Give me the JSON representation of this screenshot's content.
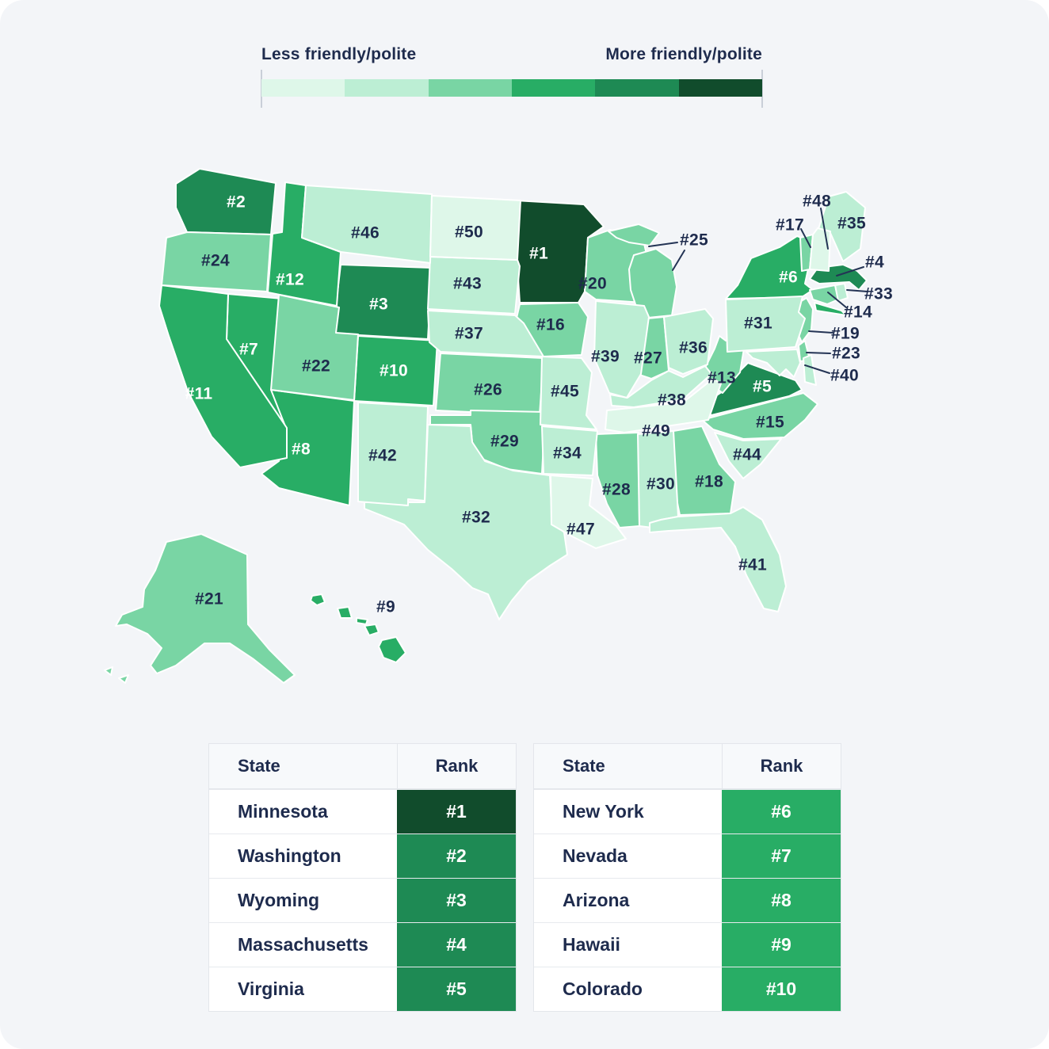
{
  "card": {
    "background": "#f3f5f8"
  },
  "legend": {
    "less_label": "Less friendly/polite",
    "more_label": "More friendly/polite",
    "colors": [
      "#def7e9",
      "#bceed4",
      "#79d5a4",
      "#28ad65",
      "#1e8a54",
      "#114c2c"
    ],
    "text_color": "#1e2b4d"
  },
  "scale_buckets": [
    {
      "min": 1,
      "max": 1,
      "color_index": 5
    },
    {
      "min": 2,
      "max": 5,
      "color_index": 4
    },
    {
      "min": 6,
      "max": 12,
      "color_index": 3
    },
    {
      "min": 13,
      "max": 29,
      "color_index": 2
    },
    {
      "min": 30,
      "max": 46,
      "color_index": 1
    },
    {
      "min": 47,
      "max": 50,
      "color_index": 0
    }
  ],
  "map": {
    "label_color_dark": "#1e2b4d",
    "label_color_light": "#ffffff",
    "callout_line_color": "#243455",
    "states": [
      {
        "abbr": "MN",
        "name": "Minnesota",
        "rank": 1,
        "label": "#1"
      },
      {
        "abbr": "WA",
        "name": "Washington",
        "rank": 2,
        "label": "#2"
      },
      {
        "abbr": "WY",
        "name": "Wyoming",
        "rank": 3,
        "label": "#3"
      },
      {
        "abbr": "MA",
        "name": "Massachusetts",
        "rank": 4,
        "label": "#4"
      },
      {
        "abbr": "VA",
        "name": "Virginia",
        "rank": 5,
        "label": "#5"
      },
      {
        "abbr": "NY",
        "name": "New York",
        "rank": 6,
        "label": "#6"
      },
      {
        "abbr": "NV",
        "name": "Nevada",
        "rank": 7,
        "label": "#7"
      },
      {
        "abbr": "AZ",
        "name": "Arizona",
        "rank": 8,
        "label": "#8"
      },
      {
        "abbr": "HI",
        "name": "Hawaii",
        "rank": 9,
        "label": "#9"
      },
      {
        "abbr": "CO",
        "name": "Colorado",
        "rank": 10,
        "label": "#10"
      },
      {
        "abbr": "CA",
        "name": "California",
        "rank": 11,
        "label": "#11"
      },
      {
        "abbr": "ID",
        "name": "Idaho",
        "rank": 12,
        "label": "#12"
      },
      {
        "abbr": "WV",
        "name": "West Virginia",
        "rank": 13,
        "label": "#13"
      },
      {
        "abbr": "CT",
        "name": "Connecticut",
        "rank": 14,
        "label": "#14"
      },
      {
        "abbr": "NC",
        "name": "North Carolina",
        "rank": 15,
        "label": "#15"
      },
      {
        "abbr": "IA",
        "name": "Iowa",
        "rank": 16,
        "label": "#16"
      },
      {
        "abbr": "VT",
        "name": "Vermont",
        "rank": 17,
        "label": "#17"
      },
      {
        "abbr": "GA",
        "name": "Georgia",
        "rank": 18,
        "label": "#18"
      },
      {
        "abbr": "NJ",
        "name": "New Jersey",
        "rank": 19,
        "label": "#19"
      },
      {
        "abbr": "WI",
        "name": "Wisconsin",
        "rank": 20,
        "label": "#20"
      },
      {
        "abbr": "AK",
        "name": "Alaska",
        "rank": 21,
        "label": "#21"
      },
      {
        "abbr": "UT",
        "name": "Utah",
        "rank": 22,
        "label": "#22"
      },
      {
        "abbr": "DE",
        "name": "Delaware",
        "rank": 23,
        "label": "#23"
      },
      {
        "abbr": "OR",
        "name": "Oregon",
        "rank": 24,
        "label": "#24"
      },
      {
        "abbr": "MI",
        "name": "Michigan",
        "rank": 25,
        "label": "#25"
      },
      {
        "abbr": "KS",
        "name": "Kansas",
        "rank": 26,
        "label": "#26"
      },
      {
        "abbr": "IN",
        "name": "Indiana",
        "rank": 27,
        "label": "#27"
      },
      {
        "abbr": "MS",
        "name": "Mississippi",
        "rank": 28,
        "label": "#28"
      },
      {
        "abbr": "OK",
        "name": "Oklahoma",
        "rank": 29,
        "label": "#29"
      },
      {
        "abbr": "AL",
        "name": "Alabama",
        "rank": 30,
        "label": "#30"
      },
      {
        "abbr": "PA",
        "name": "Pennsylvania",
        "rank": 31,
        "label": "#31"
      },
      {
        "abbr": "TX",
        "name": "Texas",
        "rank": 32,
        "label": "#32"
      },
      {
        "abbr": "RI",
        "name": "Rhode Island",
        "rank": 33,
        "label": "#33"
      },
      {
        "abbr": "AR",
        "name": "Arkansas",
        "rank": 34,
        "label": "#34"
      },
      {
        "abbr": "ME",
        "name": "Maine",
        "rank": 35,
        "label": "#35"
      },
      {
        "abbr": "OH",
        "name": "Ohio",
        "rank": 36,
        "label": "#36"
      },
      {
        "abbr": "NE",
        "name": "Nebraska",
        "rank": 37,
        "label": "#37"
      },
      {
        "abbr": "KY",
        "name": "Kentucky",
        "rank": 38,
        "label": "#38"
      },
      {
        "abbr": "IL",
        "name": "Illinois",
        "rank": 39,
        "label": "#39"
      },
      {
        "abbr": "MD",
        "name": "Maryland",
        "rank": 40,
        "label": "#40"
      },
      {
        "abbr": "FL",
        "name": "Florida",
        "rank": 41,
        "label": "#41"
      },
      {
        "abbr": "NM",
        "name": "New Mexico",
        "rank": 42,
        "label": "#42"
      },
      {
        "abbr": "SD",
        "name": "South Dakota",
        "rank": 43,
        "label": "#43"
      },
      {
        "abbr": "SC",
        "name": "South Carolina",
        "rank": 44,
        "label": "#44"
      },
      {
        "abbr": "MO",
        "name": "Missouri",
        "rank": 45,
        "label": "#45"
      },
      {
        "abbr": "MT",
        "name": "Montana",
        "rank": 46,
        "label": "#46"
      },
      {
        "abbr": "LA",
        "name": "Louisiana",
        "rank": 47,
        "label": "#47"
      },
      {
        "abbr": "NH",
        "name": "New Hampshire",
        "rank": 48,
        "label": "#48"
      },
      {
        "abbr": "TN",
        "name": "Tennessee",
        "rank": 49,
        "label": "#49"
      },
      {
        "abbr": "ND",
        "name": "North Dakota",
        "rank": 50,
        "label": "#50"
      }
    ]
  },
  "tables": [
    {
      "state_header": "State",
      "rank_header": "Rank",
      "rows": [
        {
          "state": "Minnesota",
          "rank": 1,
          "rank_label": "#1"
        },
        {
          "state": "Washington",
          "rank": 2,
          "rank_label": "#2"
        },
        {
          "state": "Wyoming",
          "rank": 3,
          "rank_label": "#3"
        },
        {
          "state": "Massachusetts",
          "rank": 4,
          "rank_label": "#4"
        },
        {
          "state": "Virginia",
          "rank": 5,
          "rank_label": "#5"
        }
      ]
    },
    {
      "state_header": "State",
      "rank_header": "Rank",
      "rows": [
        {
          "state": "New York",
          "rank": 6,
          "rank_label": "#6"
        },
        {
          "state": "Nevada",
          "rank": 7,
          "rank_label": "#7"
        },
        {
          "state": "Arizona",
          "rank": 8,
          "rank_label": "#8"
        },
        {
          "state": "Hawaii",
          "rank": 9,
          "rank_label": "#9"
        },
        {
          "state": "Colorado",
          "rank": 10,
          "rank_label": "#10"
        }
      ]
    }
  ],
  "chart_data": {
    "type": "heatmap",
    "title": "US states ranked by friendliness/politeness",
    "legend_min_label": "Less friendly/polite",
    "legend_max_label": "More friendly/polite",
    "categories": [
      "Minnesota",
      "Washington",
      "Wyoming",
      "Massachusetts",
      "Virginia",
      "New York",
      "Nevada",
      "Arizona",
      "Hawaii",
      "Colorado",
      "California",
      "Idaho",
      "West Virginia",
      "Connecticut",
      "North Carolina",
      "Iowa",
      "Vermont",
      "Georgia",
      "New Jersey",
      "Wisconsin",
      "Alaska",
      "Utah",
      "Delaware",
      "Oregon",
      "Michigan",
      "Kansas",
      "Indiana",
      "Mississippi",
      "Oklahoma",
      "Alabama",
      "Pennsylvania",
      "Texas",
      "Rhode Island",
      "Arkansas",
      "Maine",
      "Ohio",
      "Nebraska",
      "Kentucky",
      "Illinois",
      "Maryland",
      "Florida",
      "New Mexico",
      "South Dakota",
      "South Carolina",
      "Missouri",
      "Montana",
      "Louisiana",
      "New Hampshire",
      "Tennessee",
      "North Dakota"
    ],
    "values": [
      1,
      2,
      3,
      4,
      5,
      6,
      7,
      8,
      9,
      10,
      11,
      12,
      13,
      14,
      15,
      16,
      17,
      18,
      19,
      20,
      21,
      22,
      23,
      24,
      25,
      26,
      27,
      28,
      29,
      30,
      31,
      32,
      33,
      34,
      35,
      36,
      37,
      38,
      39,
      40,
      41,
      42,
      43,
      44,
      45,
      46,
      47,
      48,
      49,
      50
    ]
  }
}
